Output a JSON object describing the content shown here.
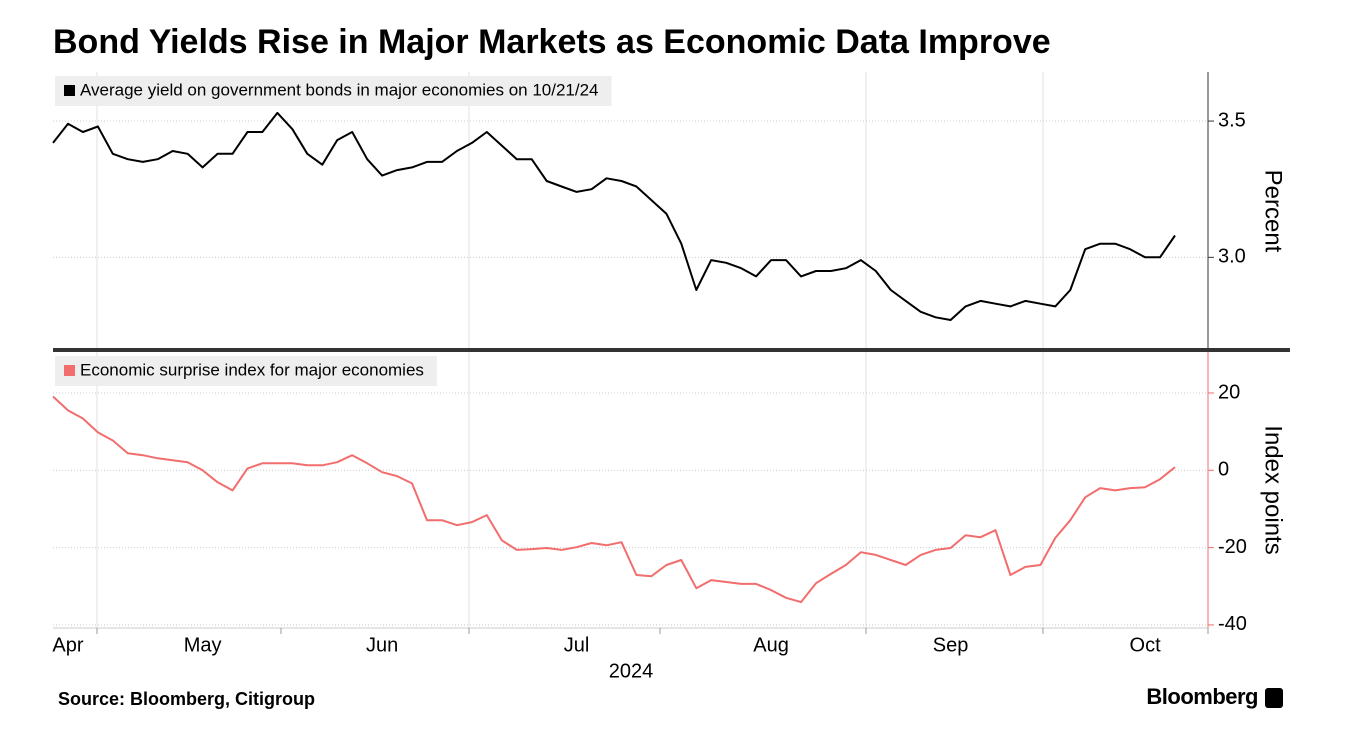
{
  "chart_data": {
    "type": "line",
    "title": "Bond Yields Rise in Major Markets as Economic Data Improve",
    "source": "Source: Bloomberg, Citigroup",
    "brand": "Bloomberg",
    "x_label": "2024",
    "categories": [
      null,
      "Apr",
      null,
      null,
      null,
      null,
      null,
      null,
      null,
      null,
      "May",
      null,
      null,
      null,
      null,
      null,
      null,
      null,
      null,
      null,
      null,
      null,
      "Jun",
      null,
      null,
      null,
      null,
      null,
      null,
      null,
      null,
      null,
      null,
      null,
      null,
      "Jul",
      null,
      null,
      null,
      null,
      null,
      null,
      null,
      null,
      null,
      null,
      null,
      null,
      "Aug",
      null,
      null,
      null,
      null,
      null,
      null,
      null,
      null,
      null,
      null,
      null,
      "Sep",
      null,
      null,
      null,
      null,
      null,
      null,
      null,
      null,
      null,
      null,
      null,
      null,
      "Oct",
      null,
      null
    ],
    "panels": [
      {
        "y_label": "Percent",
        "ylim": [
          2.66,
          3.68
        ],
        "yticks": [
          {
            "value": 3,
            "label": "3.0"
          },
          3.5
        ],
        "grid": true,
        "series": [
          {
            "name": "Average yield on government bonds in major economies on 10/21/24",
            "color": "#000000",
            "values": [
              3.42,
              3.49,
              3.46,
              3.48,
              3.38,
              3.36,
              3.35,
              3.36,
              3.39,
              3.38,
              3.33,
              3.38,
              3.38,
              3.46,
              3.46,
              3.53,
              3.47,
              3.38,
              3.34,
              3.43,
              3.46,
              3.36,
              3.3,
              3.32,
              3.33,
              3.35,
              3.35,
              3.39,
              3.42,
              3.46,
              3.41,
              3.36,
              3.36,
              3.28,
              3.26,
              3.24,
              3.25,
              3.29,
              3.28,
              3.26,
              3.21,
              3.16,
              3.05,
              2.88,
              2.99,
              2.98,
              2.96,
              2.93,
              2.99,
              2.99,
              2.93,
              2.95,
              2.95,
              2.96,
              2.99,
              2.95,
              2.88,
              2.84,
              2.8,
              2.78,
              2.77,
              2.82,
              2.84,
              2.83,
              2.82,
              2.84,
              2.83,
              2.82,
              2.88,
              3.03,
              3.05,
              3.05,
              3.03,
              3.0,
              3.0,
              3.08
            ]
          }
        ]
      },
      {
        "y_label": "Index points",
        "ylim": [
          -40.8,
          30.6
        ],
        "yticks": [
          -40,
          -20,
          0,
          20
        ],
        "grid": true,
        "series": [
          {
            "name": "Economic surprise index for major economies",
            "color": "#f26d6d",
            "values": [
              19.1,
              15.5,
              13.4,
              9.8,
              7.7,
              4.4,
              3.9,
              3.1,
              2.6,
              2.1,
              0,
              -3.1,
              -5.2,
              0.5,
              1.8,
              1.8,
              1.8,
              1.3,
              1.3,
              2.1,
              3.9,
              1.8,
              -0.5,
              -1.5,
              -3.4,
              -12.9,
              -12.9,
              -14.2,
              -13.4,
              -11.6,
              -18.1,
              -20.6,
              -20.4,
              -20.1,
              -20.6,
              -19.9,
              -18.8,
              -19.4,
              -18.6,
              -27.1,
              -27.4,
              -24.5,
              -23.2,
              -30.5,
              -28.4,
              -28.9,
              -29.4,
              -29.4,
              -31.0,
              -33.0,
              -34.1,
              -29.2,
              -26.8,
              -24.5,
              -21.2,
              -21.9,
              -23.2,
              -24.5,
              -21.9,
              -20.6,
              -20.1,
              -16.8,
              -17.3,
              -15.5,
              -27.1,
              -25.0,
              -24.5,
              -17.5,
              -12.9,
              -7.0,
              -4.6,
              -5.2,
              -4.6,
              -4.4,
              -2.3,
              0.8
            ]
          }
        ]
      }
    ]
  }
}
